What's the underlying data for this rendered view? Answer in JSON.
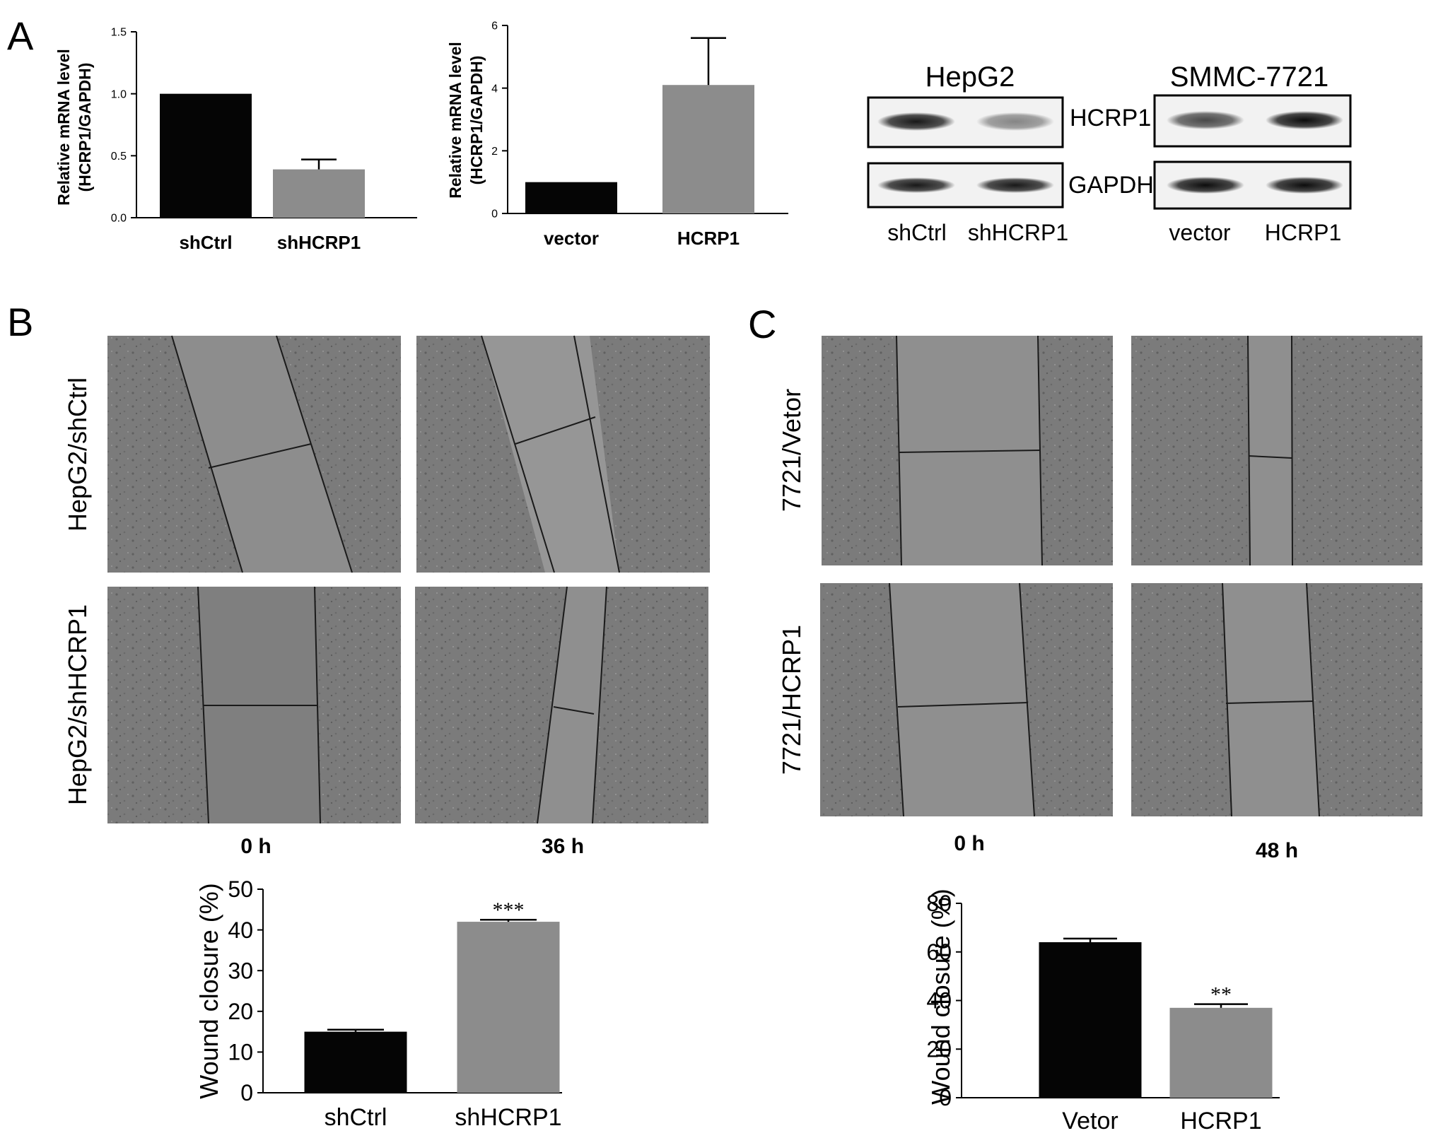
{
  "panel_labels": {
    "a": "A",
    "b": "B",
    "c": "C"
  },
  "colors": {
    "black_bar": "#050505",
    "gray_bar": "#8c8c8c",
    "micro_bg": "#7b7b7b",
    "micro_gap": "#8f8f8f"
  },
  "western_blot": {
    "hepg2": {
      "title": "HepG2",
      "lanes": [
        "shCtrl",
        "shHCRP1"
      ]
    },
    "smmc": {
      "title": "SMMC-7721",
      "lanes": [
        "vector",
        "HCRP1"
      ]
    },
    "band_labels": [
      "HCRP1",
      "GAPDH"
    ],
    "band_intensity": {
      "hepg2_hcrp1": [
        0.9,
        0.45
      ],
      "hepg2_gapdh": [
        0.9,
        0.9
      ],
      "smmc_hcrp1": [
        0.7,
        0.95
      ],
      "smmc_gapdh": [
        0.95,
        0.95
      ]
    }
  },
  "micrographs": {
    "b_rows": [
      "HepG2/shCtrl",
      "HepG2/shHCRP1"
    ],
    "b_times": [
      "0 h",
      "36 h"
    ],
    "c_rows": [
      "7721/Vetor",
      "7721/HCRP1"
    ],
    "c_times": [
      "0 h",
      "48 h"
    ]
  },
  "chart_data": [
    {
      "id": "a1",
      "type": "bar",
      "categories": [
        "shCtrl",
        "shHCRP1"
      ],
      "values": [
        1.0,
        0.39
      ],
      "errors": [
        0,
        0.08
      ],
      "colors": [
        "#050505",
        "#8c8c8c"
      ],
      "ylabel": [
        "Relative mRNA level",
        "(HCRP1/GAPDH)"
      ],
      "ylim": [
        0,
        1.5
      ],
      "yticks": [
        0.0,
        0.5,
        1.0,
        1.5
      ],
      "ytick_labels": [
        "0.0",
        "0.5",
        "1.0",
        "1.5"
      ],
      "annotations": []
    },
    {
      "id": "a2",
      "type": "bar",
      "categories": [
        "vector",
        "HCRP1"
      ],
      "values": [
        1.0,
        4.1
      ],
      "errors": [
        0,
        1.5
      ],
      "colors": [
        "#050505",
        "#8c8c8c"
      ],
      "ylabel": [
        "Relative mRNA level",
        "(HCRP1/GAPDH)"
      ],
      "ylim": [
        0,
        6
      ],
      "yticks": [
        0,
        2,
        4,
        6
      ],
      "ytick_labels": [
        "0",
        "2",
        "4",
        "6"
      ],
      "annotations": []
    },
    {
      "id": "b",
      "type": "bar",
      "categories": [
        "shCtrl",
        "shHCRP1"
      ],
      "values": [
        15,
        42
      ],
      "errors": [
        0.5,
        0.5
      ],
      "colors": [
        "#050505",
        "#8c8c8c"
      ],
      "ylabel": [
        "Wound closure (%)"
      ],
      "ylim": [
        0,
        50
      ],
      "yticks": [
        0,
        10,
        20,
        30,
        40,
        50
      ],
      "ytick_labels": [
        "0",
        "10",
        "20",
        "30",
        "40",
        "50"
      ],
      "annotations": [
        "",
        "***"
      ]
    },
    {
      "id": "c",
      "type": "bar",
      "categories": [
        "Vetor",
        "HCRP1"
      ],
      "values": [
        64,
        37
      ],
      "errors": [
        1.5,
        1.5
      ],
      "colors": [
        "#050505",
        "#8c8c8c"
      ],
      "ylabel": [
        "Wound closure (%)"
      ],
      "ylim": [
        0,
        80
      ],
      "yticks": [
        0,
        20,
        40,
        60,
        80
      ],
      "ytick_labels": [
        "0",
        "20",
        "40",
        "60",
        "80"
      ],
      "annotations": [
        "",
        "**"
      ]
    }
  ]
}
